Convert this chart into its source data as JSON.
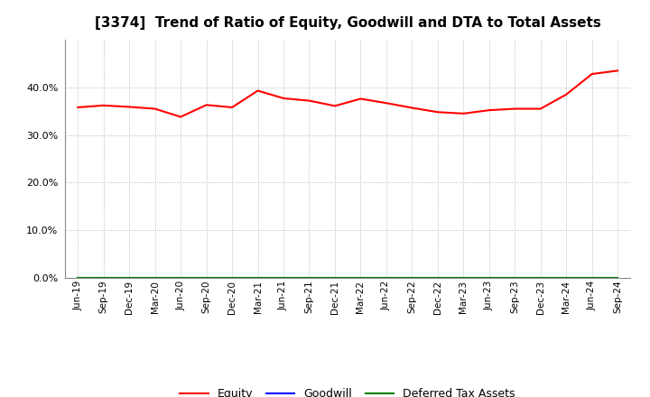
{
  "title": "[3374]  Trend of Ratio of Equity, Goodwill and DTA to Total Assets",
  "x_labels": [
    "Jun-19",
    "Sep-19",
    "Dec-19",
    "Mar-20",
    "Jun-20",
    "Sep-20",
    "Dec-20",
    "Mar-21",
    "Jun-21",
    "Sep-21",
    "Dec-21",
    "Mar-22",
    "Jun-22",
    "Sep-22",
    "Dec-22",
    "Mar-23",
    "Jun-23",
    "Sep-23",
    "Dec-23",
    "Mar-24",
    "Jun-24",
    "Sep-24"
  ],
  "equity": [
    35.8,
    36.2,
    35.9,
    35.5,
    33.8,
    36.3,
    35.8,
    39.3,
    37.7,
    37.2,
    36.1,
    37.6,
    36.7,
    35.7,
    34.8,
    34.5,
    35.2,
    35.5,
    35.5,
    38.5,
    42.8,
    43.5
  ],
  "goodwill": [
    0.0,
    0.0,
    0.0,
    0.0,
    0.0,
    0.0,
    0.0,
    0.0,
    0.0,
    0.0,
    0.0,
    0.0,
    0.0,
    0.0,
    0.0,
    0.0,
    0.0,
    0.0,
    0.0,
    0.0,
    0.0,
    0.0
  ],
  "dta": [
    0.0,
    0.0,
    0.0,
    0.0,
    0.0,
    0.0,
    0.0,
    0.0,
    0.0,
    0.0,
    0.0,
    0.0,
    0.0,
    0.0,
    0.0,
    0.0,
    0.0,
    0.0,
    0.0,
    0.0,
    0.0,
    0.0
  ],
  "equity_color": "#FF0000",
  "goodwill_color": "#0000FF",
  "dta_color": "#008000",
  "ylim": [
    0.0,
    50.0
  ],
  "yticks": [
    0.0,
    10.0,
    20.0,
    30.0,
    40.0
  ],
  "background_color": "#FFFFFF",
  "plot_bg_color": "#FFFFFF",
  "grid_color": "#AAAAAA",
  "title_fontsize": 11,
  "legend_labels": [
    "Equity",
    "Goodwill",
    "Deferred Tax Assets"
  ]
}
